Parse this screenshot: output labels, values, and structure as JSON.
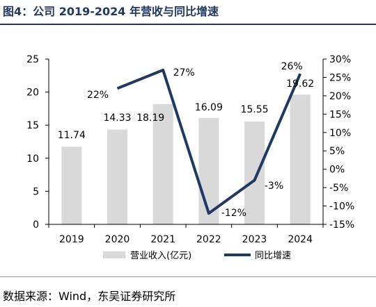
{
  "figure": {
    "title": "图4：公司 2019-2024 年营收与同比增速",
    "source": "数据来源：Wind，东吴证券研究所"
  },
  "chart_data": {
    "type": "bar+line",
    "categories": [
      "2019",
      "2020",
      "2021",
      "2022",
      "2023",
      "2024"
    ],
    "series": [
      {
        "name": "营业收入(亿元)",
        "type": "bar",
        "axis": "left",
        "color": "#d9d9d9",
        "values": [
          11.74,
          14.33,
          18.19,
          16.09,
          15.55,
          19.62
        ],
        "labels": [
          "11.74",
          "14.33",
          "18.19",
          "16.09",
          "15.55",
          "19.62"
        ]
      },
      {
        "name": "同比增速",
        "type": "line",
        "axis": "right",
        "color": "#1f3864",
        "values": [
          null,
          22,
          27,
          -12,
          -3,
          26
        ],
        "labels": [
          "",
          "22%",
          "27%",
          "-12%",
          "-3%",
          "26%"
        ]
      }
    ],
    "y_left": {
      "min": 0,
      "max": 25,
      "ticks": [
        "0",
        "5",
        "10",
        "15",
        "20",
        "25"
      ]
    },
    "y_right": {
      "min": -15,
      "max": 30,
      "ticks": [
        "-15%",
        "-10%",
        "-5%",
        "0%",
        "5%",
        "10%",
        "15%",
        "20%",
        "25%",
        "30%"
      ]
    },
    "grid": false,
    "legend": "bottom"
  }
}
